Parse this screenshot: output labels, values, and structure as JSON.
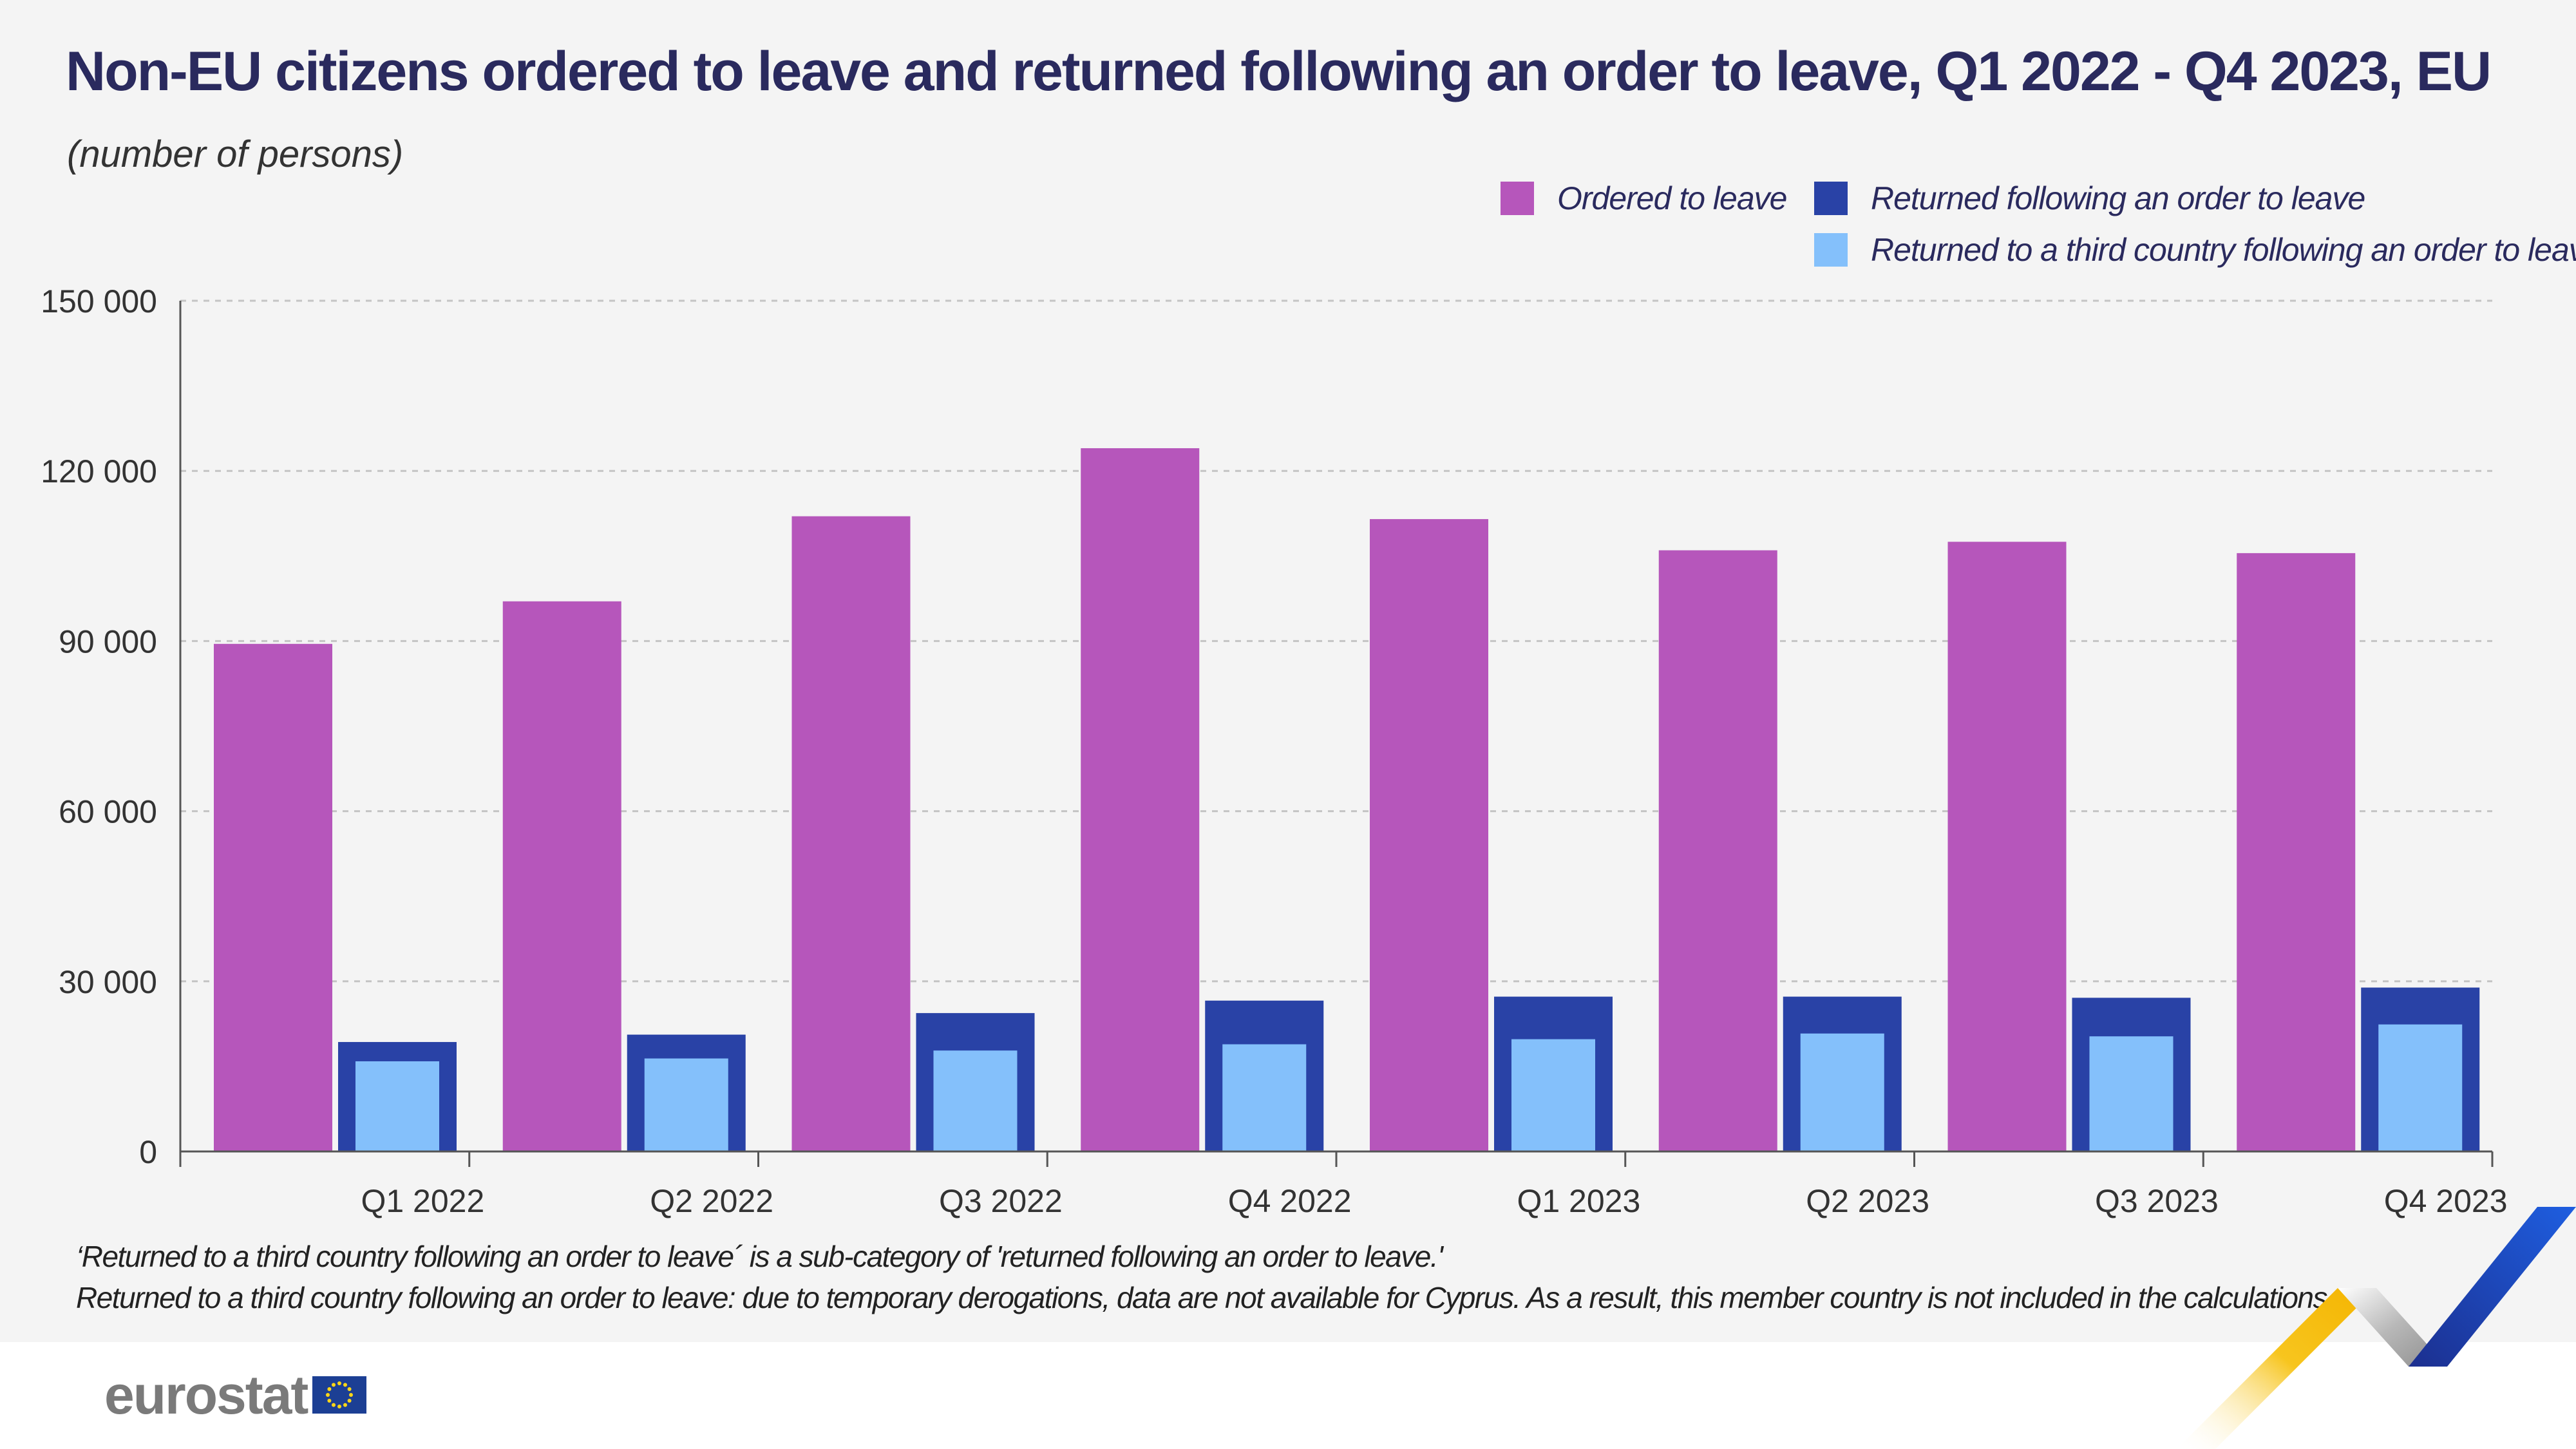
{
  "title": "Non-EU citizens ordered to leave and returned following an order to leave, Q1 2022 - Q4 2023, EU",
  "subtitle": "(number of persons)",
  "legend": [
    {
      "label": "Ordered to leave",
      "color": "#b656bb"
    },
    {
      "label": "Returned following an order to leave",
      "color": "#2942a6"
    },
    {
      "label": "Returned to a third country following an order to leave",
      "color": "#84c0fb"
    }
  ],
  "footnotes": [
    "‘Returned to a third country following an order to leave´ is a sub-category of 'returned following an order to leave.'",
    "Returned to a third country following an order to leave: due to temporary derogations, data are not available for Cyprus. As a result, this member country is not included in the calculations."
  ],
  "logo": {
    "text": "eurostat"
  },
  "chart_data": {
    "type": "bar",
    "categories": [
      "Q1 2022",
      "Q2 2022",
      "Q3 2022",
      "Q4 2022",
      "Q1 2023",
      "Q2 2023",
      "Q3 2023",
      "Q4 2023"
    ],
    "series": [
      {
        "name": "Ordered to leave",
        "color": "#b656bb",
        "values": [
          89500,
          97000,
          112000,
          124000,
          111500,
          106000,
          107500,
          105500
        ]
      },
      {
        "name": "Returned following an order to leave",
        "color": "#2942a6",
        "values": [
          19300,
          20600,
          24400,
          26600,
          27300,
          27300,
          27100,
          28900
        ]
      },
      {
        "name": "Returned to a third country following an order to leave",
        "color": "#84c0fb",
        "values": [
          15900,
          16400,
          17800,
          18900,
          19800,
          20800,
          20300,
          22400
        ]
      }
    ],
    "yticks": [
      0,
      30000,
      60000,
      90000,
      120000,
      150000
    ],
    "ytick_labels": [
      "0",
      "30 000",
      "60 000",
      "90 000",
      "120 000",
      "150 000"
    ],
    "ylim": [
      0,
      150000
    ],
    "grid": true,
    "legend_position": "top-right"
  }
}
